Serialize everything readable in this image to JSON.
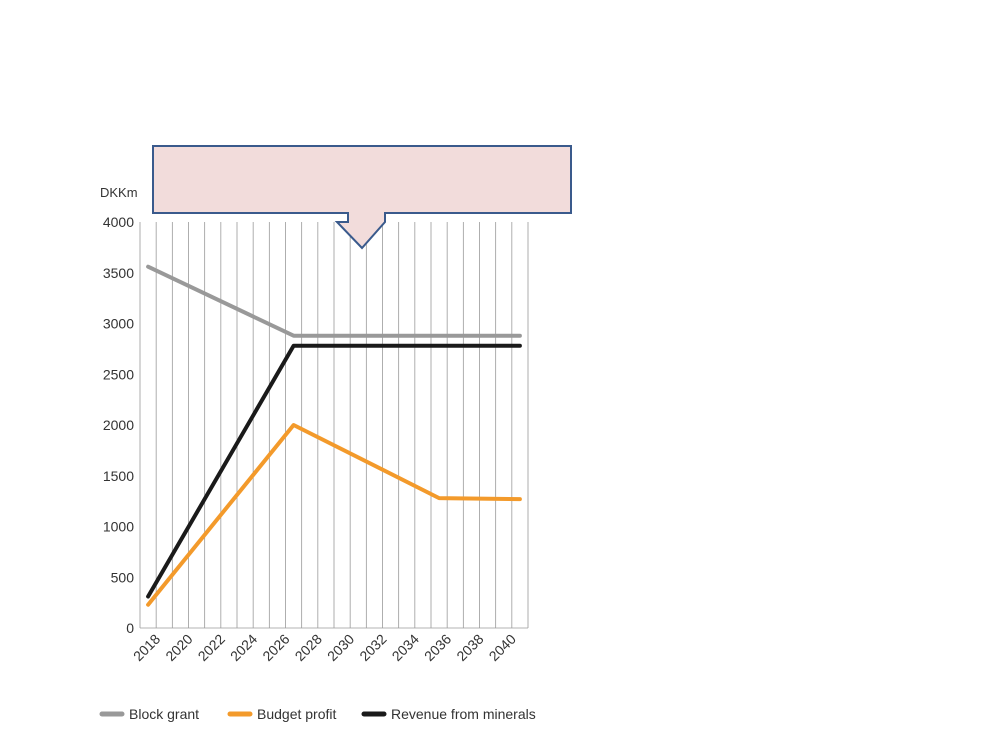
{
  "chart_data": {
    "type": "line",
    "title": "",
    "xlabel": "",
    "ylabel": "DKKm",
    "ylim": [
      0,
      4000
    ],
    "xlim": [
      2017,
      2041
    ],
    "yticks": [
      0,
      500,
      1000,
      1500,
      2000,
      2500,
      3000,
      3500,
      4000
    ],
    "xticks": [
      2018,
      2020,
      2022,
      2024,
      2026,
      2028,
      2030,
      2032,
      2034,
      2036,
      2038,
      2040
    ],
    "grid": "vertical",
    "legend_position": "bottom",
    "series": [
      {
        "name": "Block grant",
        "color": "#999999",
        "points": [
          [
            2017.5,
            3560
          ],
          [
            2026.5,
            2880
          ],
          [
            2040.5,
            2880
          ]
        ]
      },
      {
        "name": "Budget profit",
        "color": "#f39a2b",
        "points": [
          [
            2017.5,
            230
          ],
          [
            2026.5,
            2000
          ],
          [
            2035.5,
            1280
          ],
          [
            2040.5,
            1270
          ]
        ]
      },
      {
        "name": "Revenue from minerals",
        "color": "#1a1a1a",
        "points": [
          [
            2017.5,
            310
          ],
          [
            2026.5,
            2780
          ],
          [
            2040.5,
            2780
          ]
        ]
      }
    ]
  },
  "callout": {
    "fill": "#f2dcdb",
    "stroke": "#3a5a8c"
  }
}
